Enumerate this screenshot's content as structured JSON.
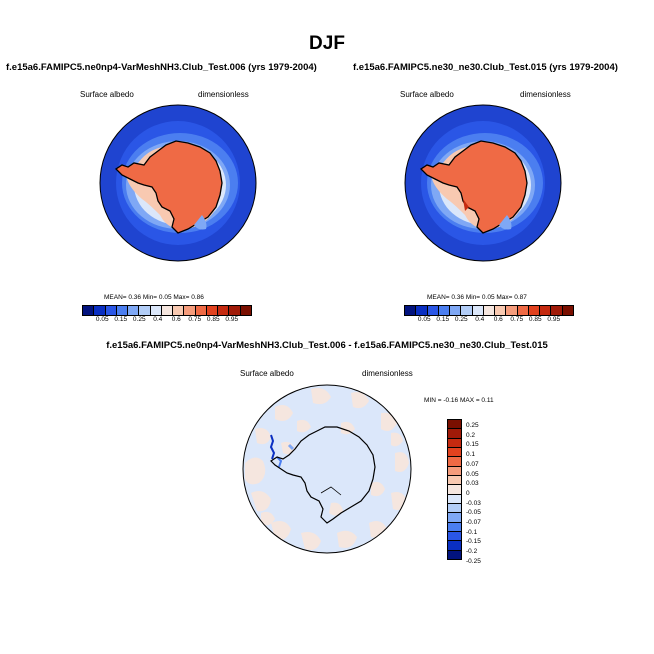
{
  "main_title": "DJF",
  "panels": {
    "left": {
      "title": "f.e15a6.FAMIPC5.ne0np4-VarMeshNH3.Club_Test.006 (yrs 1979-2004)",
      "variable": "Surface albedo",
      "units": "dimensionless",
      "stats": "MEAN=   0.36  Min=   0.05  Max=   0.86"
    },
    "right": {
      "title": "f.e15a6.FAMIPC5.ne30_ne30.Club_Test.015 (yrs 1979-2004)",
      "variable": "Surface albedo",
      "units": "dimensionless",
      "stats": "MEAN=   0.36  Min=   0.05  Max=   0.87"
    },
    "diff": {
      "title": "f.e15a6.FAMIPC5.ne0np4-VarMeshNH3.Club_Test.006 - f.e15a6.FAMIPC5.ne30_ne30.Club_Test.015",
      "variable": "Surface albedo",
      "units": "dimensionless",
      "stats": "MIN =  -0.16 MAX =   0.11"
    }
  },
  "colorbar_main": {
    "labels": [
      "0.05",
      "0.15",
      "0.25",
      "0.4",
      "0.6",
      "0.75",
      "0.85",
      "0.95"
    ],
    "colors": [
      "#02137e",
      "#0a2fc2",
      "#2a56e6",
      "#4b7ef0",
      "#7fa8f5",
      "#b2cdf7",
      "#dbe7fa",
      "#f5e6df",
      "#f8c9b1",
      "#f59c7c",
      "#ef6a45",
      "#e2421f",
      "#c52a10",
      "#a01a08",
      "#7a0f00"
    ]
  },
  "colorbar_diff": {
    "labels": [
      "0.25",
      "0.2",
      "0.15",
      "0.1",
      "0.07",
      "0.05",
      "0.03",
      "0",
      "-0.03",
      "-0.05",
      "-0.07",
      "-0.1",
      "-0.15",
      "-0.2",
      "-0.25"
    ],
    "colors": [
      "#7a0f00",
      "#a01a08",
      "#c52a10",
      "#e2421f",
      "#ef6a45",
      "#f59c7c",
      "#f8c9b1",
      "#f5e6df",
      "#dbe7fa",
      "#b2cdf7",
      "#7fa8f5",
      "#4b7ef0",
      "#2a56e6",
      "#0a2fc2",
      "#02137e"
    ]
  }
}
